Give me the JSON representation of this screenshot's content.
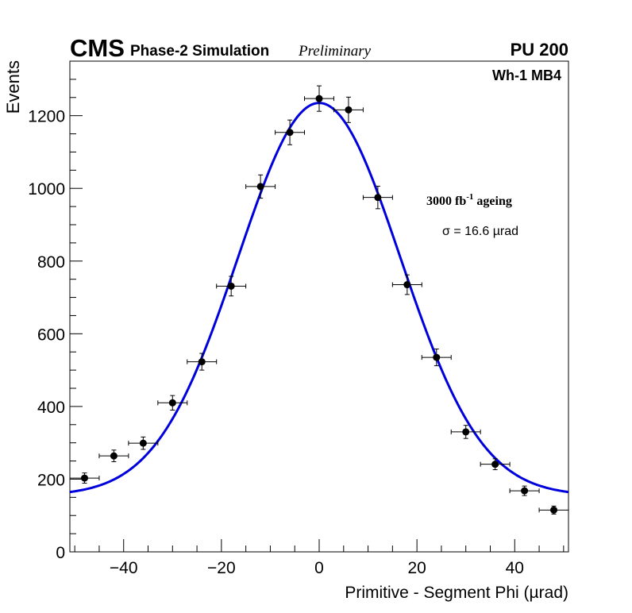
{
  "header": {
    "experiment": "CMS",
    "subtitle": "Phase-2 Simulation",
    "status": "Preliminary",
    "pileup": "PU 200"
  },
  "chart_data": {
    "type": "scatter",
    "title": "",
    "xlabel": "Primitive - Segment Phi (µrad)",
    "ylabel": "Events",
    "xlim": [
      -51,
      51
    ],
    "ylim": [
      0,
      1350
    ],
    "x_ticks": [
      -40,
      -20,
      0,
      20,
      40
    ],
    "x_tick_labels": [
      "−40",
      "−20",
      "0",
      "20",
      "40"
    ],
    "y_ticks": [
      0,
      200,
      400,
      600,
      800,
      1000,
      1200
    ],
    "y_tick_labels": [
      "0",
      "200",
      "400",
      "600",
      "800",
      "1000",
      "1200"
    ],
    "grid": false,
    "legend": "none",
    "annotations": {
      "region": "Wh-1 MB4",
      "ageing_value": "3000 fb",
      "ageing_exponent": "-1",
      "ageing_word": " ageing",
      "resolution": "σ = 16.6 µrad"
    },
    "series": [
      {
        "name": "Simulation",
        "kind": "points_with_errors",
        "x": [
          -48,
          -42,
          -36,
          -30,
          -24,
          -18,
          -12,
          -6,
          0,
          6,
          12,
          18,
          24,
          30,
          36,
          42,
          48
        ],
        "y": [
          203,
          264,
          299,
          410,
          523,
          731,
          1005,
          1154,
          1247,
          1216,
          975,
          735,
          535,
          330,
          241,
          168,
          115
        ],
        "y_error": [
          14,
          16,
          17,
          20,
          23,
          27,
          32,
          34,
          35,
          35,
          31,
          27,
          23,
          18,
          15,
          13,
          11
        ],
        "x_error": 3,
        "color": "#000000"
      },
      {
        "name": "Fit",
        "kind": "gaussian_fit",
        "amplitude": 1080,
        "mean": 0,
        "sigma": 16.6,
        "baseline": 155,
        "color": "#0000dd"
      }
    ]
  }
}
